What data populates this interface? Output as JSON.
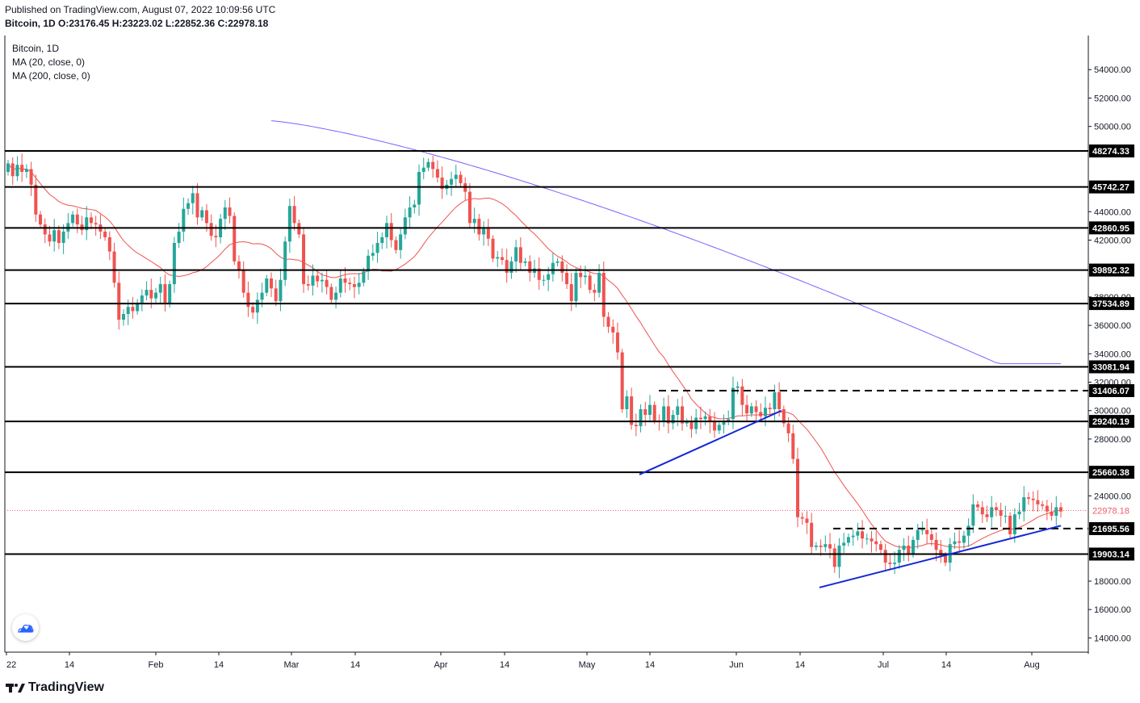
{
  "header": {
    "published": "Published on TradingView.com, August 07, 2022 10:09:56 UTC",
    "symbol": "Bitcoin, 1D",
    "o_label": "O:",
    "o": "23176.45",
    "h_label": "H:",
    "h": "23223.02",
    "l_label": "L:",
    "l": "22852.36",
    "c_label": "C:",
    "c": "22978.18"
  },
  "legend": {
    "title": "Bitcoin, 1D",
    "ma20": "MA (20, close, 0)",
    "ma200": "MA (200, close, 0)"
  },
  "footer": {
    "brand": "TradingView"
  },
  "colors": {
    "up": "#26a69a",
    "down": "#ef5350",
    "ma20": "#ef5350",
    "ma200": "#7b61ff",
    "trend": "#1428d6",
    "level": "#000000",
    "last_price": "#f15a6b"
  },
  "chart_data": {
    "type": "candlestick",
    "title": "Bitcoin, 1D",
    "ylim": [
      13000,
      56400
    ],
    "x_ticks": [
      "22",
      "14",
      "Feb",
      "14",
      "Mar",
      "14",
      "Apr",
      "14",
      "May",
      "14",
      "Jun",
      "14",
      "Jul",
      "14",
      "Aug"
    ],
    "y_ticks": [
      "54000.00",
      "52000.00",
      "50000.00",
      "44000.00",
      "42000.00",
      "38000.00",
      "36000.00",
      "34000.00",
      "32000.00",
      "30000.00",
      "28000.00",
      "24000.00",
      "18000.00",
      "16000.00",
      "14000.00"
    ],
    "y_tick_values": [
      54000,
      52000,
      50000,
      44000,
      42000,
      38000,
      36000,
      34000,
      32000,
      30000,
      28000,
      24000,
      18000,
      16000,
      14000
    ],
    "horizontal_levels": [
      48274.33,
      45742.27,
      42860.95,
      39892.32,
      37534.89,
      33081.94,
      29240.19,
      25660.38,
      19903.14
    ],
    "horizontal_level_labels": [
      "48274.33",
      "45742.27",
      "42860.95",
      "39892.32",
      "37534.89",
      "33081.94",
      "29240.19",
      "25660.38",
      "19903.14"
    ],
    "dashed_levels": [
      31406.07,
      21695.56
    ],
    "dashed_level_labels": [
      "31406.07",
      "21695.56"
    ],
    "last_price": 22978.18,
    "last_price_label": "22978.18",
    "closes": [
      47400,
      46500,
      47300,
      46800,
      47000,
      45900,
      43800,
      43100,
      42400,
      41900,
      42700,
      41800,
      42600,
      43200,
      43800,
      43100,
      42700,
      43600,
      43200,
      43100,
      42600,
      42200,
      41200,
      39000,
      36400,
      36800,
      37300,
      37000,
      37600,
      38100,
      38500,
      37900,
      38300,
      38900,
      37500,
      38900,
      41800,
      42600,
      44200,
      44600,
      45300,
      43600,
      44100,
      43200,
      42300,
      42200,
      43500,
      44300,
      43700,
      40500,
      39900,
      38300,
      37300,
      36900,
      37800,
      38300,
      39300,
      38600,
      37700,
      39200,
      41900,
      44400,
      43200,
      42400,
      38900,
      38800,
      39500,
      39100,
      39200,
      38700,
      37800,
      38300,
      39300,
      39000,
      38900,
      38700,
      39000,
      39800,
      40900,
      41100,
      41800,
      42200,
      43200,
      42000,
      41300,
      42400,
      43600,
      44300,
      44500,
      46800,
      47100,
      47500,
      47000,
      46400,
      45600,
      45900,
      46300,
      46600,
      46000,
      45400,
      43200,
      43500,
      42400,
      42800,
      42100,
      40700,
      40800,
      40600,
      39700,
      40500,
      41500,
      40400,
      40500,
      39700,
      40000,
      39200,
      39200,
      39600,
      40400,
      40500,
      39700,
      38900,
      37700,
      39700,
      39400,
      39500,
      38500,
      38300,
      39700,
      36600,
      35900,
      35500,
      34100,
      30100,
      31000,
      29000,
      28900,
      30100,
      29700,
      30400,
      29300,
      29200,
      30300,
      29100,
      29700,
      30300,
      29100,
      29200,
      28700,
      29500,
      29400,
      29600,
      29200,
      28600,
      29000,
      29300,
      29400,
      31600,
      31700,
      30400,
      29800,
      30300,
      29900,
      29600,
      30200,
      30100,
      31300,
      30100,
      29100,
      28400,
      26600,
      22500,
      22400,
      22100,
      20400,
      20500,
      20400,
      20600,
      20300,
      19000,
      20500,
      20700,
      21100,
      21200,
      21500,
      21000,
      21000,
      20800,
      20600,
      20200,
      19300,
      19200,
      19300,
      20200,
      20500,
      19900,
      20900,
      21600,
      21600,
      21300,
      20900,
      20200,
      19800,
      19300,
      20600,
      20800,
      20700,
      21200,
      21900,
      23400,
      23200,
      22700,
      22500,
      23200,
      23000,
      22600,
      22600,
      21300,
      22700,
      22900,
      23900,
      23800,
      23700,
      23400,
      23300,
      22900,
      22600,
      23200,
      22900
    ]
  }
}
